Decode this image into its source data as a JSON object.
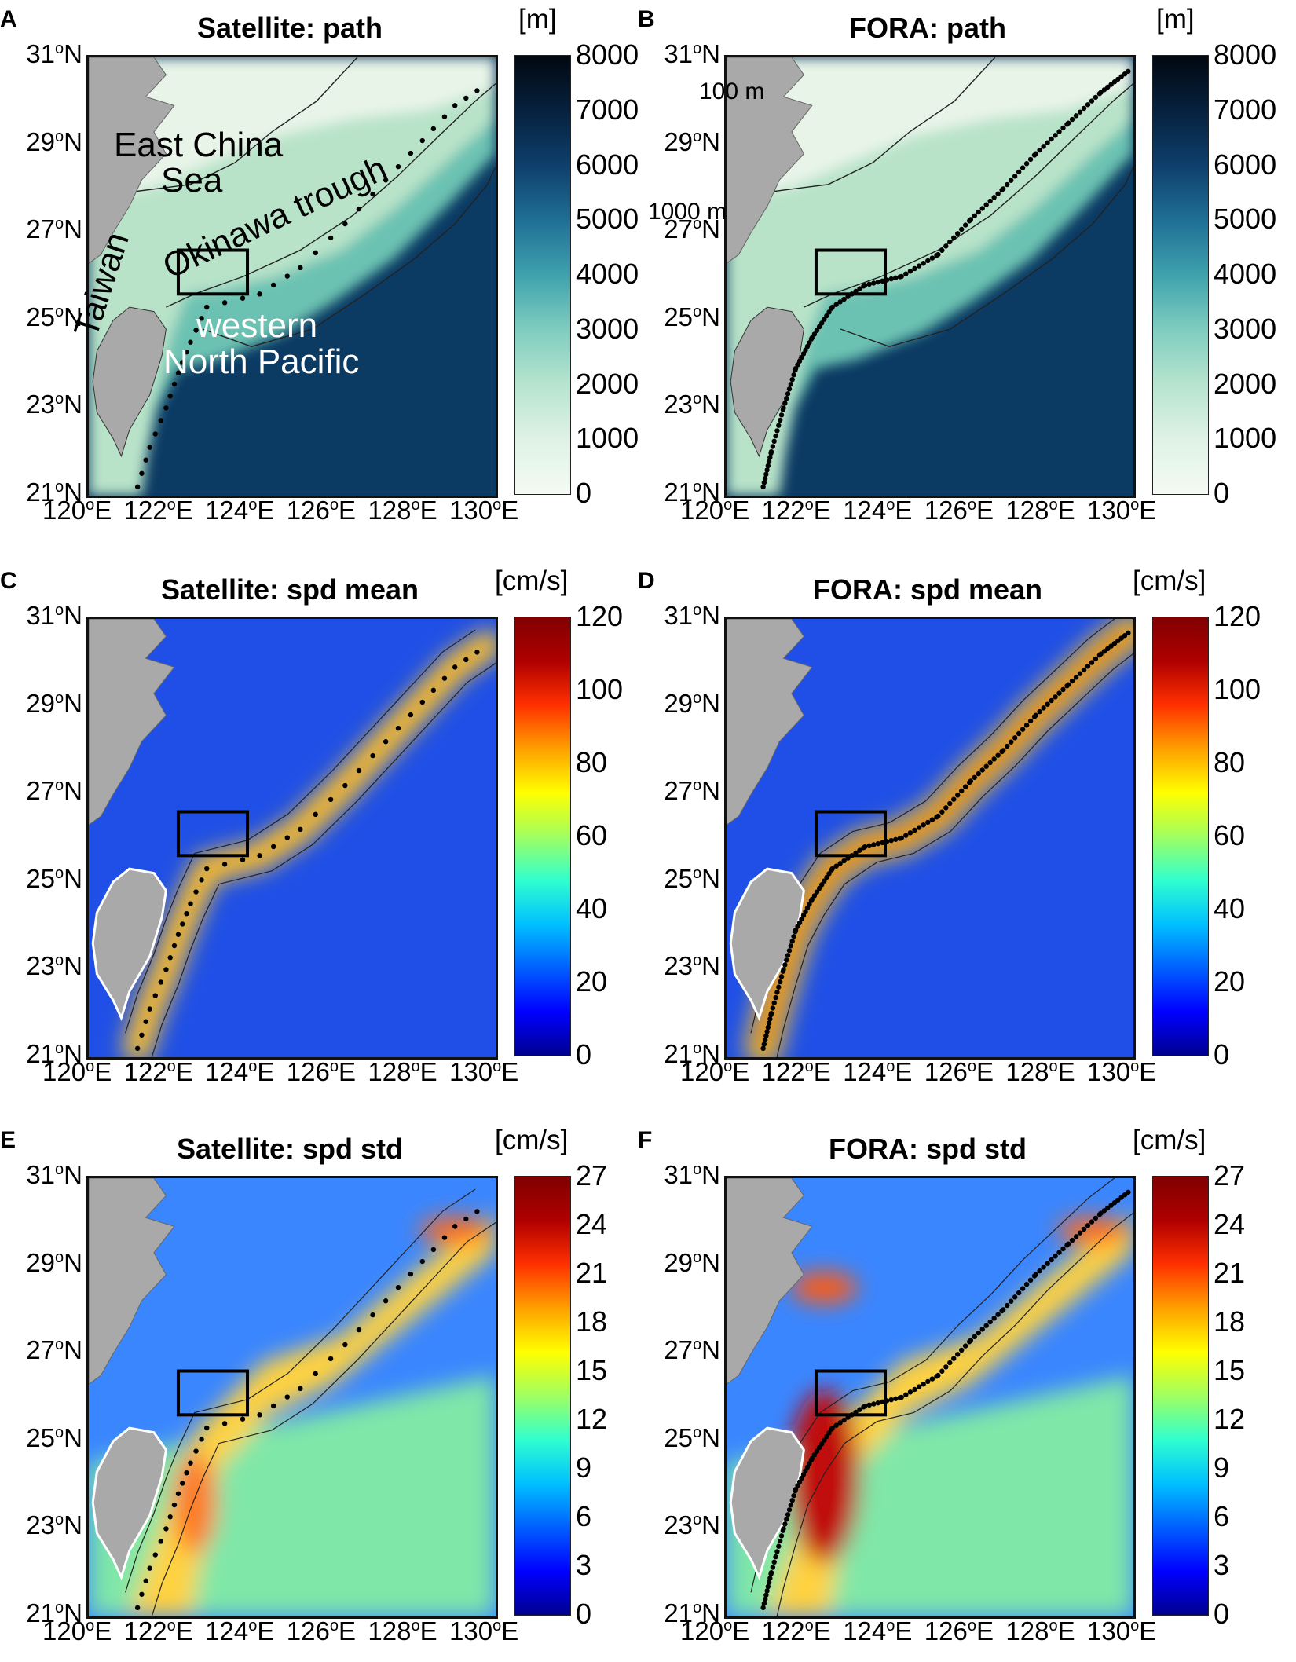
{
  "figure": {
    "panels": [
      {
        "id": "A",
        "label": "A",
        "title": "Satellite: path",
        "unit": "[m]",
        "colorbar": {
          "name": "depth",
          "ticks": [
            "8000",
            "7000",
            "6000",
            "5000",
            "4000",
            "3000",
            "2000",
            "1000",
            "0"
          ]
        },
        "annotations": [
          "East China",
          "Sea",
          "Okinawa trough",
          "Taiwan",
          "western",
          "North Pacific"
        ]
      },
      {
        "id": "B",
        "label": "B",
        "title": "FORA: path",
        "unit": "[m]",
        "colorbar": {
          "name": "depth",
          "ticks": [
            "8000",
            "7000",
            "6000",
            "5000",
            "4000",
            "3000",
            "2000",
            "1000",
            "0"
          ]
        },
        "annotations": [
          "100 m",
          "1000 m"
        ]
      },
      {
        "id": "C",
        "label": "C",
        "title": "Satellite: spd mean",
        "unit": "[cm/s]",
        "colorbar": {
          "name": "jet",
          "ticks": [
            "120",
            "100",
            "80",
            "60",
            "40",
            "20",
            "0"
          ]
        }
      },
      {
        "id": "D",
        "label": "D",
        "title": "FORA: spd mean",
        "unit": "[cm/s]",
        "colorbar": {
          "name": "jet",
          "ticks": [
            "120",
            "100",
            "80",
            "60",
            "40",
            "20",
            "0"
          ]
        }
      },
      {
        "id": "E",
        "label": "E",
        "title": "Satellite: spd std",
        "unit": "[cm/s]",
        "colorbar": {
          "name": "jet",
          "ticks": [
            "27",
            "24",
            "21",
            "18",
            "15",
            "12",
            "9",
            "6",
            "3",
            "0"
          ]
        }
      },
      {
        "id": "F",
        "label": "F",
        "title": "FORA: spd std",
        "unit": "[cm/s]",
        "colorbar": {
          "name": "jet",
          "ticks": [
            "27",
            "24",
            "21",
            "18",
            "15",
            "12",
            "9",
            "6",
            "3",
            "0"
          ]
        }
      }
    ],
    "lat_ticks": [
      "31",
      "29",
      "27",
      "25",
      "23",
      "21"
    ],
    "lon_ticks": [
      "120",
      "122",
      "124",
      "126",
      "128",
      "130"
    ],
    "lat_suffix": "N",
    "lon_suffix": "E",
    "deg": "o",
    "extent": {
      "lon": [
        120,
        130
      ],
      "lat": [
        21,
        31
      ]
    },
    "colors": {
      "land": "#a9a9a9",
      "shallow": "#e8f4e8",
      "shelf_edge": "#9fd6b8",
      "deep": "#0b3a63",
      "contour": "#222222",
      "box": "#000000"
    }
  }
}
